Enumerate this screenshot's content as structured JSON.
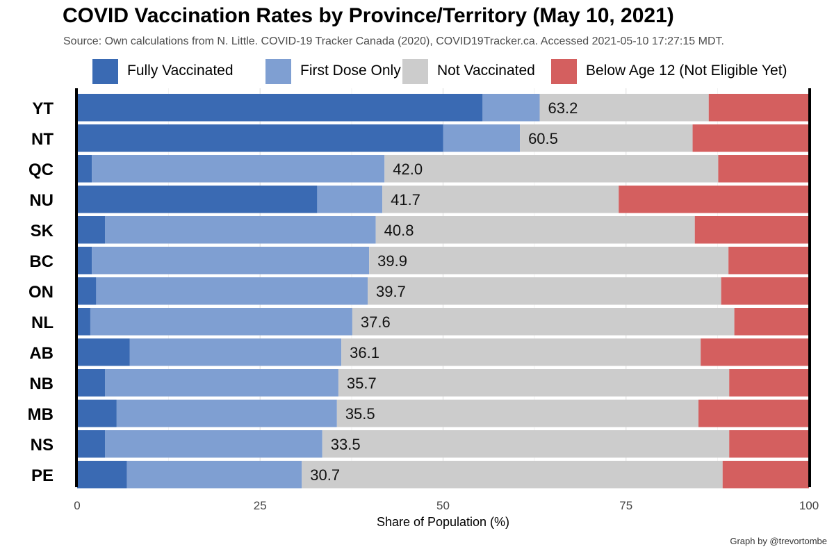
{
  "title": "COVID Vaccination Rates by Province/Territory (May 10, 2021)",
  "subtitle": "Source: Own calculations from N. Little. COVID-19 Tracker Canada (2020), COVID19Tracker.ca. Accessed 2021-05-10 17:27:15 MDT.",
  "credit": "Graph by @trevortombe",
  "legend": [
    {
      "label": "Fully Vaccinated",
      "color": "#3a6ab3"
    },
    {
      "label": "First Dose Only",
      "color": "#7f9fd2"
    },
    {
      "label": "Not Vaccinated",
      "color": "#cccccc"
    },
    {
      "label": "Below Age 12 (Not Eligible Yet)",
      "color": "#d45f5f"
    }
  ],
  "chart_data": {
    "type": "bar",
    "orientation": "horizontal",
    "stacked": true,
    "xlabel": "Share of Population (%)",
    "ylabel": "",
    "xlim": [
      0,
      100
    ],
    "xticks": [
      0,
      25,
      50,
      75,
      100
    ],
    "legend_position": "top",
    "grid": true,
    "categories": [
      "YT",
      "NT",
      "QC",
      "NU",
      "SK",
      "BC",
      "ON",
      "NL",
      "AB",
      "NB",
      "MB",
      "NS",
      "PE"
    ],
    "data_labels": [
      "63.2",
      "60.5",
      "42.0",
      "41.7",
      "40.8",
      "39.9",
      "39.7",
      "37.6",
      "36.1",
      "35.7",
      "35.5",
      "33.5",
      "30.7"
    ],
    "series": [
      {
        "name": "Fully Vaccinated",
        "color": "#3a6ab3",
        "values": [
          55.4,
          50.0,
          2.0,
          32.8,
          3.8,
          2.0,
          2.6,
          1.8,
          7.2,
          3.8,
          5.4,
          3.8,
          6.8
        ]
      },
      {
        "name": "First Dose Only",
        "color": "#7f9fd2",
        "values": [
          7.8,
          10.5,
          40.0,
          8.9,
          37.0,
          37.9,
          37.1,
          35.8,
          28.9,
          31.9,
          30.1,
          29.7,
          23.9
        ]
      },
      {
        "name": "Not Vaccinated",
        "color": "#cccccc",
        "values": [
          23.1,
          23.6,
          45.6,
          32.3,
          43.6,
          49.1,
          48.3,
          52.2,
          49.1,
          53.4,
          49.4,
          55.6,
          57.5
        ]
      },
      {
        "name": "Below Age 12 (Not Eligible Yet)",
        "color": "#d45f5f",
        "values": [
          13.7,
          15.9,
          12.4,
          26.0,
          15.6,
          11.0,
          12.0,
          10.2,
          14.8,
          10.9,
          15.1,
          10.9,
          11.8
        ]
      }
    ]
  }
}
